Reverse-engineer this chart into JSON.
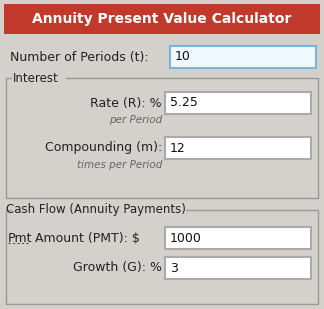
{
  "title": "Annuity Present Value Calculator",
  "title_bg": "#c0392b",
  "title_text_color": "#ffffff",
  "bg_color": "#d4d0cb",
  "outer_bg": "#d4d0cb",
  "fields": [
    {
      "label": "Number of Periods (t):",
      "value": "10",
      "input_border": "#7ab4d8",
      "input_bg": "#f0f8ff"
    }
  ],
  "interest_group_label": "Interest",
  "interest_fields": [
    {
      "label": "Rate (R): %",
      "value": "5.25",
      "sublabel": "per Period",
      "input_border": "#aaaaaa",
      "input_bg": "#ffffff"
    },
    {
      "label": "Compounding (m):",
      "value": "12",
      "sublabel": "times per Period",
      "input_border": "#aaaaaa",
      "input_bg": "#ffffff"
    }
  ],
  "cashflow_group_label": "Cash Flow (Annuity Payments)",
  "cashflow_fields": [
    {
      "label": "Pmt Amount (PMT): $",
      "value": "1000",
      "sublabel": "",
      "input_border": "#aaaaaa",
      "input_bg": "#ffffff"
    },
    {
      "label": "Growth (G): %",
      "value": "3",
      "sublabel": "",
      "input_border": "#aaaaaa",
      "input_bg": "#ffffff"
    }
  ],
  "fig_width": 3.24,
  "fig_height": 3.09,
  "dpi": 100
}
